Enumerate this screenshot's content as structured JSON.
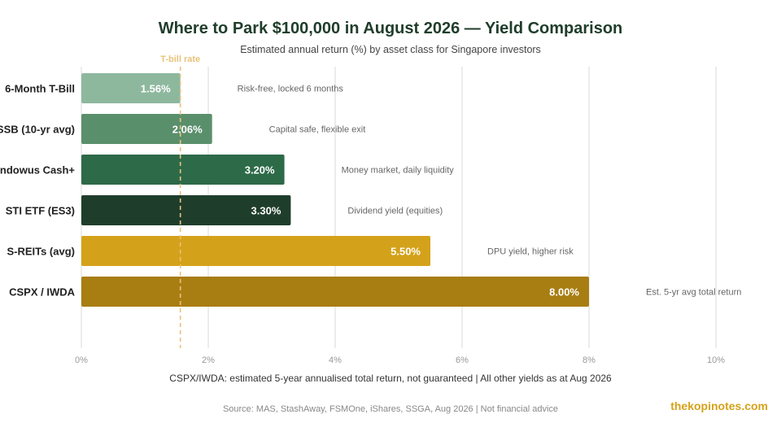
{
  "title": "Where to Park $100,000 in August 2026 — Yield Comparison",
  "subtitle": "Estimated annual return (%) by asset class for Singapore investors",
  "footnote": "CSPX/IWDA: estimated 5-year annualised total return, not guaranteed | All other yields as at Aug 2026",
  "source": "Source: MAS, StashAway, FSMOne, iShares, SSGA, Aug 2026 | Not financial advice",
  "brand": "thekopinotes.com",
  "chart_data": {
    "type": "bar",
    "orientation": "horizontal",
    "categories": [
      "6-Month T-Bill",
      "SSB (10-yr avg)",
      "Endowus Cash+",
      "STI ETF (ES3)",
      "S-REITs (avg)",
      "CSPX / IWDA"
    ],
    "values": [
      1.56,
      2.06,
      3.2,
      3.3,
      5.5,
      8.0
    ],
    "value_labels": [
      "1.56%",
      "2.06%",
      "3.20%",
      "3.30%",
      "5.50%",
      "8.00%"
    ],
    "annotations": [
      "Risk-free, locked 6 months",
      "Capital safe, flexible exit",
      "Money market, daily liquidity",
      "Dividend yield (equities)",
      "DPU yield, higher risk",
      "Est. 5-yr avg total return"
    ],
    "colors": [
      "#8db89e",
      "#5a8f6c",
      "#2d6a48",
      "#1f3d2b",
      "#d4a21a",
      "#a87d12"
    ],
    "xlim": [
      0,
      10
    ],
    "xticks": [
      0,
      2,
      4,
      6,
      8,
      10
    ],
    "xtick_labels": [
      "0%",
      "2%",
      "4%",
      "6%",
      "8%",
      "10%"
    ],
    "grid": true,
    "reference_line": {
      "value": 1.56,
      "label": "T-bill rate",
      "color": "#e8c27a"
    }
  }
}
